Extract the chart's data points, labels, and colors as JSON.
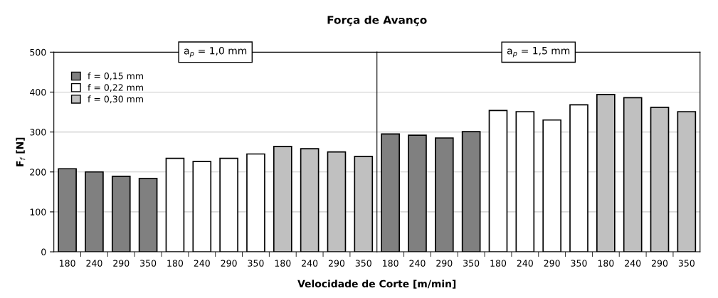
{
  "chart_data": [
    {
      "type": "bar",
      "title": "Força de Avanço",
      "xlabel": "Velocidade de Corte [m/min]",
      "ylabel": "F$_{f}$ [N]",
      "categories": [
        "180",
        "240",
        "290",
        "350",
        "180",
        "240",
        "290",
        "350",
        "180",
        "240",
        "290",
        "350"
      ],
      "series": [
        {
          "name": "f = 0,15 mm",
          "color": "#808080",
          "values": [
            208,
            200,
            189,
            184,
            null,
            null,
            null,
            null,
            null,
            null,
            null,
            null
          ]
        },
        {
          "name": "f = 0,22 mm",
          "color": "#ffffff",
          "values": [
            null,
            null,
            null,
            null,
            234,
            226,
            234,
            245,
            null,
            null,
            null,
            null
          ]
        },
        {
          "name": "f = 0,30 mm",
          "color": "#c0c0c0",
          "values": [
            null,
            null,
            null,
            null,
            null,
            null,
            null,
            null,
            264,
            258,
            250,
            239
          ]
        }
      ],
      "ylim": [
        0,
        500
      ],
      "yticks": [
        0,
        100,
        200,
        300,
        400,
        500
      ],
      "grid": "y",
      "legend": "top left",
      "annotations": [
        "a$_{p}$ = 1,0 mm"
      ]
    },
    {
      "type": "bar",
      "categories": [
        "180",
        "240",
        "290",
        "350",
        "180",
        "240",
        "290",
        "350",
        "180",
        "240",
        "290",
        "350"
      ],
      "series": [
        {
          "color": "#808080",
          "values": [
            295,
            292,
            285,
            301,
            null,
            null,
            null,
            null,
            null,
            null,
            null,
            null
          ]
        },
        {
          "color": "#ffffff",
          "values": [
            null,
            null,
            null,
            null,
            354,
            351,
            330,
            368,
            null,
            null,
            null,
            null
          ]
        },
        {
          "color": "#c0c0c0",
          "values": [
            null,
            null,
            null,
            null,
            null,
            null,
            null,
            null,
            394,
            386,
            362,
            351
          ]
        }
      ],
      "ylim": [
        0,
        500
      ],
      "yticks": [
        0,
        100,
        200,
        300,
        400,
        500
      ],
      "grid": "y",
      "tick_labels": "x",
      "annotations": [
        "a$_{p}$ = 1,5 mm"
      ]
    }
  ]
}
